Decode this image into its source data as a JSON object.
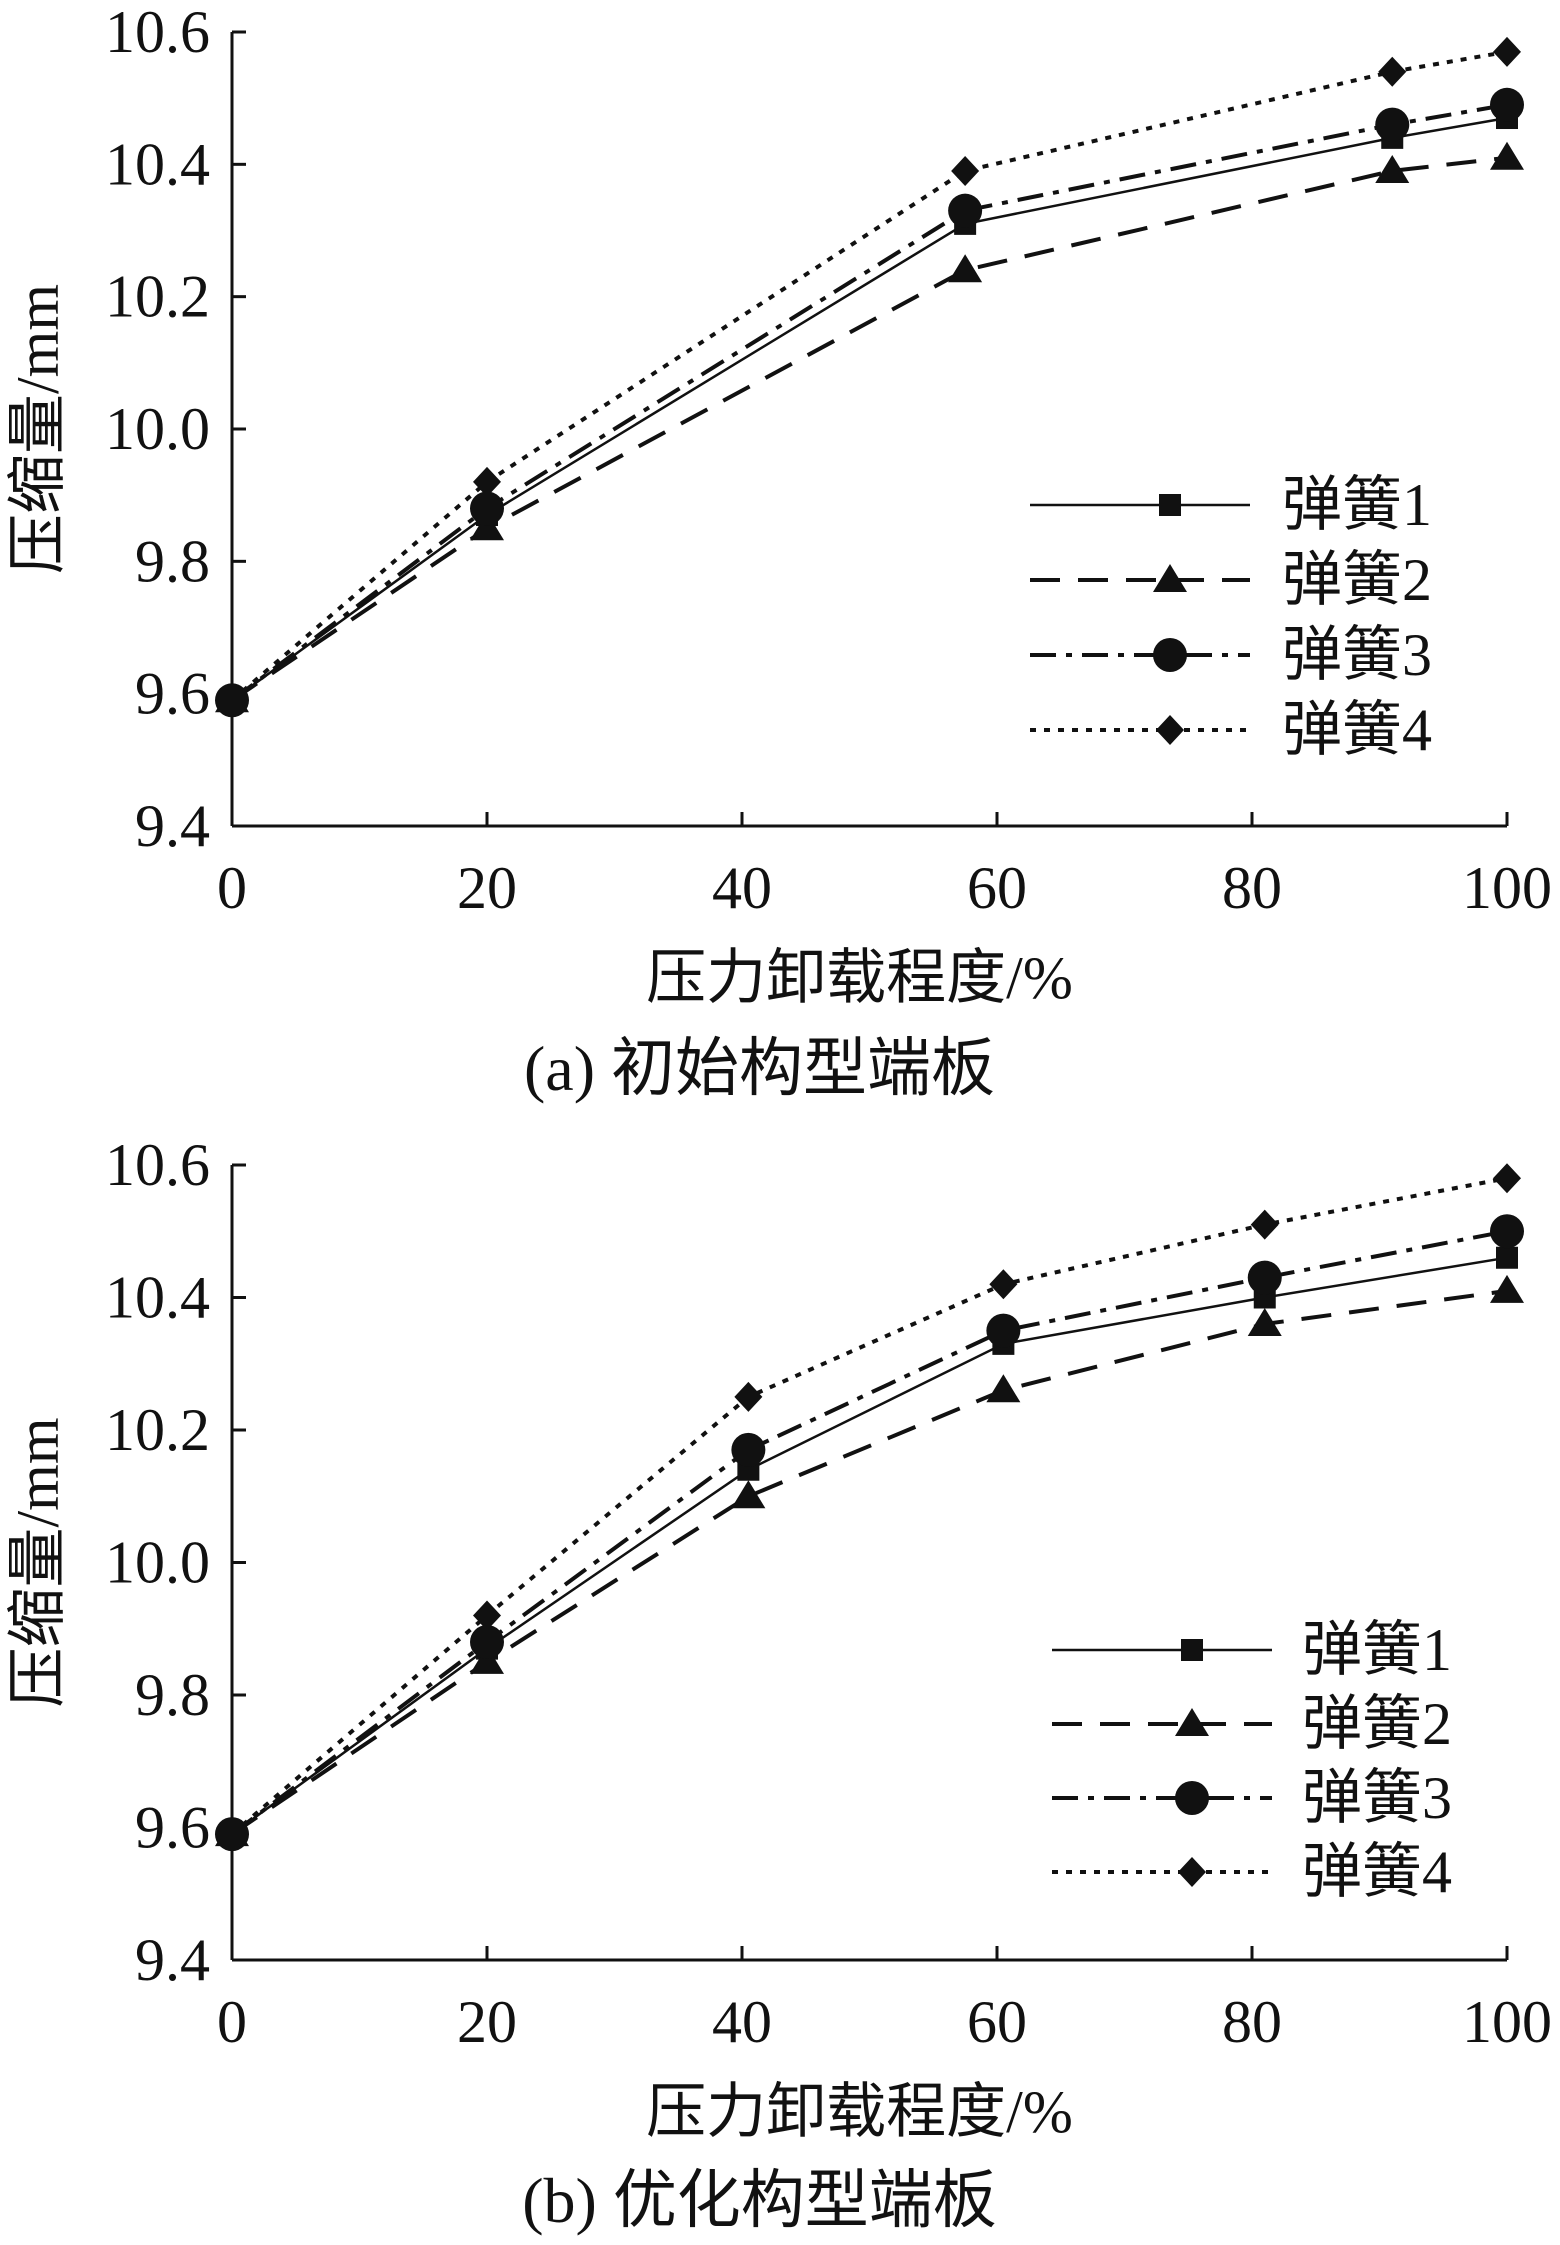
{
  "chart_data": [
    {
      "type": "line",
      "caption": "(a) 初始构型端板",
      "xlabel": "压力卸载程度/%",
      "ylabel": "压缩量/mm",
      "xlim": [
        0,
        100
      ],
      "ylim": [
        9.4,
        10.6
      ],
      "x_ticks": [
        "0",
        "20",
        "40",
        "60",
        "80",
        "100"
      ],
      "y_ticks": [
        "9.4",
        "9.6",
        "9.8",
        "10.0",
        "10.2",
        "10.4",
        "10.6"
      ],
      "grid": false,
      "legend_position": "right",
      "series": [
        {
          "name": "弹簧1",
          "marker": "square",
          "dash": "solid",
          "x": [
            0,
            20,
            57.5,
            91,
            100
          ],
          "y": [
            9.59,
            9.87,
            10.31,
            10.44,
            10.47
          ]
        },
        {
          "name": "弹簧2",
          "marker": "triangle",
          "dash": "dashed",
          "x": [
            0,
            20,
            57.5,
            91,
            100
          ],
          "y": [
            9.59,
            9.85,
            10.24,
            10.39,
            10.41
          ]
        },
        {
          "name": "弹簧3",
          "marker": "circle",
          "dash": "dashdot",
          "x": [
            0,
            20,
            57.5,
            91,
            100
          ],
          "y": [
            9.59,
            9.88,
            10.33,
            10.46,
            10.49
          ]
        },
        {
          "name": "弹簧4",
          "marker": "diamond",
          "dash": "dotted",
          "x": [
            0,
            20,
            57.5,
            91,
            100
          ],
          "y": [
            9.59,
            9.92,
            10.39,
            10.54,
            10.57
          ]
        }
      ]
    },
    {
      "type": "line",
      "caption": "(b) 优化构型端板",
      "xlabel": "压力卸载程度/%",
      "ylabel": "压缩量/mm",
      "xlim": [
        0,
        100
      ],
      "ylim": [
        9.4,
        10.6
      ],
      "x_ticks": [
        "0",
        "20",
        "40",
        "60",
        "80",
        "100"
      ],
      "y_ticks": [
        "9.4",
        "9.6",
        "9.8",
        "10.0",
        "10.2",
        "10.4",
        "10.6"
      ],
      "grid": false,
      "legend_position": "right",
      "series": [
        {
          "name": "弹簧1",
          "marker": "square",
          "dash": "solid",
          "x": [
            0,
            20,
            40.5,
            60.5,
            81,
            100
          ],
          "y": [
            9.59,
            9.87,
            10.14,
            10.33,
            10.4,
            10.46
          ]
        },
        {
          "name": "弹簧2",
          "marker": "triangle",
          "dash": "dashed",
          "x": [
            0,
            20,
            40.5,
            60.5,
            81,
            100
          ],
          "y": [
            9.59,
            9.85,
            10.1,
            10.26,
            10.36,
            10.41
          ]
        },
        {
          "name": "弹簧3",
          "marker": "circle",
          "dash": "dashdot",
          "x": [
            0,
            20,
            40.5,
            60.5,
            81,
            100
          ],
          "y": [
            9.59,
            9.88,
            10.17,
            10.35,
            10.43,
            10.5
          ]
        },
        {
          "name": "弹簧4",
          "marker": "diamond",
          "dash": "dotted",
          "x": [
            0,
            20,
            40.5,
            60.5,
            81,
            100
          ],
          "y": [
            9.59,
            9.92,
            10.25,
            10.42,
            10.51,
            10.58
          ]
        }
      ]
    }
  ]
}
